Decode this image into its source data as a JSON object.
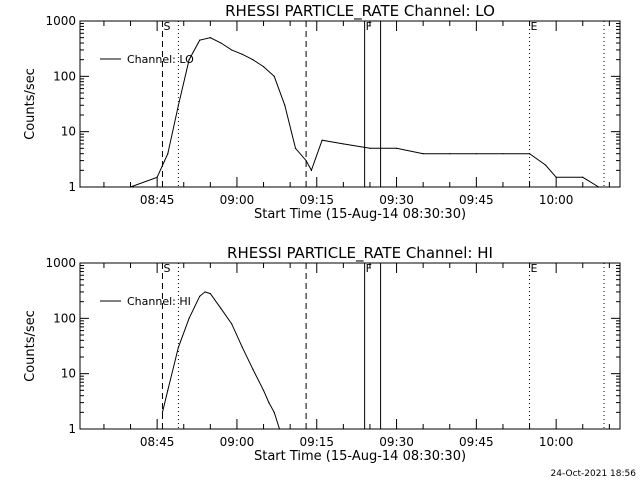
{
  "timestamp": "24-Oct-2021 18:56",
  "chart_data": [
    {
      "type": "line",
      "title": "RHESSI PARTICLE_RATE Channel: LO",
      "xlabel": "Start Time (15-Aug-14 08:30:30)",
      "ylabel": "Counts/sec",
      "yscale": "log",
      "ylim": [
        1,
        1000
      ],
      "xlim": [
        "08:30:30",
        "10:12:00"
      ],
      "x_tick_labels": [
        "08:45",
        "09:00",
        "09:15",
        "09:30",
        "09:45",
        "10:00"
      ],
      "y_tick_labels": [
        "1",
        "10",
        "100",
        "1000"
      ],
      "legend": {
        "position": "top-left",
        "entries": [
          "Channel: LO"
        ]
      },
      "flag_labels": [
        "S",
        "F",
        "E"
      ],
      "markers": [
        {
          "time": "08:46",
          "style": "dashed"
        },
        {
          "time": "08:49",
          "style": "dotted"
        },
        {
          "time": "09:13",
          "style": "dashed"
        },
        {
          "time": "09:24",
          "style": "solid"
        },
        {
          "time": "09:27",
          "style": "solid"
        },
        {
          "time": "09:55",
          "style": "dotted"
        },
        {
          "time": "10:09",
          "style": "dotted"
        }
      ],
      "series": [
        {
          "name": "Channel: LO",
          "x": [
            "08:30:30",
            "08:35",
            "08:40",
            "08:45",
            "08:47",
            "08:49",
            "08:51",
            "08:53",
            "08:55",
            "08:57",
            "08:59",
            "09:01",
            "09:03",
            "09:05",
            "09:07",
            "09:09",
            "09:11",
            "09:13",
            "09:14",
            "09:16",
            "09:20",
            "09:25",
            "09:30",
            "09:35",
            "09:40",
            "09:45",
            "09:50",
            "09:55",
            "09:58",
            "10:00",
            "10:05",
            "10:08"
          ],
          "values": [
            1,
            1,
            1,
            1.5,
            4,
            30,
            200,
            450,
            500,
            400,
            300,
            250,
            200,
            150,
            100,
            30,
            5,
            3,
            2,
            7,
            6,
            5,
            5,
            4,
            4,
            4,
            4,
            4,
            2.5,
            1.5,
            1.5,
            1
          ]
        }
      ]
    },
    {
      "type": "line",
      "title": "RHESSI PARTICLE_RATE Channel: HI",
      "xlabel": "Start Time (15-Aug-14 08:30:30)",
      "ylabel": "Counts/sec",
      "yscale": "log",
      "ylim": [
        1,
        1000
      ],
      "xlim": [
        "08:30:30",
        "10:12:00"
      ],
      "x_tick_labels": [
        "08:45",
        "09:00",
        "09:15",
        "09:30",
        "09:45",
        "10:00"
      ],
      "y_tick_labels": [
        "1",
        "10",
        "100",
        "1000"
      ],
      "legend": {
        "position": "top-left",
        "entries": [
          "Channel: HI"
        ]
      },
      "flag_labels": [
        "S",
        "F",
        "E"
      ],
      "markers": [
        {
          "time": "08:46",
          "style": "dashed"
        },
        {
          "time": "08:49",
          "style": "dotted"
        },
        {
          "time": "09:13",
          "style": "dashed"
        },
        {
          "time": "09:24",
          "style": "solid"
        },
        {
          "time": "09:27",
          "style": "solid"
        },
        {
          "time": "09:55",
          "style": "dotted"
        },
        {
          "time": "10:09",
          "style": "dotted"
        }
      ],
      "series": [
        {
          "name": "Channel: HI",
          "x": [
            "08:46",
            "08:47",
            "08:49",
            "08:51",
            "08:53",
            "08:54",
            "08:55",
            "08:57",
            "08:59",
            "09:01",
            "09:03",
            "09:05",
            "09:06",
            "09:07",
            "09:08"
          ],
          "values": [
            2,
            5,
            30,
            100,
            250,
            300,
            280,
            150,
            80,
            30,
            12,
            5,
            3,
            2,
            1
          ]
        }
      ]
    }
  ]
}
